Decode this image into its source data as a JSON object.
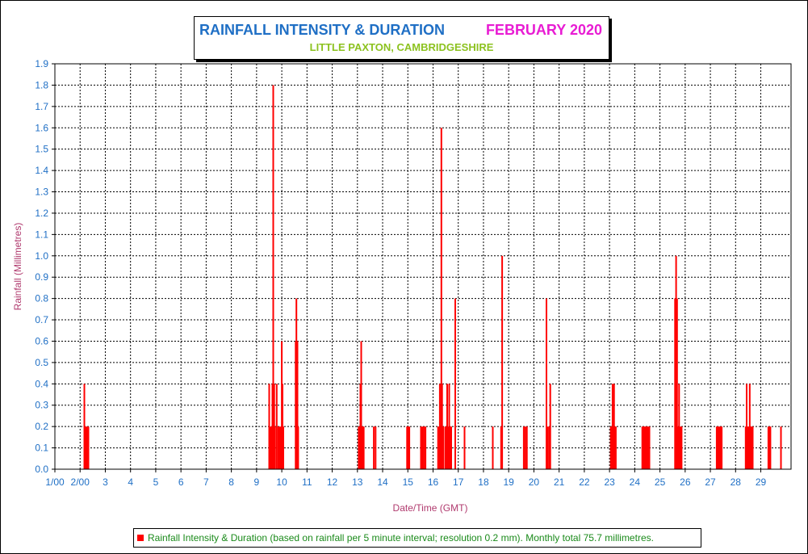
{
  "chart_data": {
    "type": "bar",
    "title": "RAINFALL INTENSITY & DURATION",
    "title_month": "FEBRUARY 2020",
    "subtitle": "LITTLE PAXTON, CAMBRIDGESHIRE",
    "xlabel": "Date/Time (GMT)",
    "ylabel": "Rainfall (Millimetres)",
    "ylim": [
      0,
      1.9
    ],
    "xlim": [
      1,
      30.2
    ],
    "grid": true,
    "legend_position": "bottom",
    "y_ticks": [
      "0.0",
      "0.1",
      "0.2",
      "0.3",
      "0.4",
      "0.5",
      "0.6",
      "0.7",
      "0.8",
      "0.9",
      "1.0",
      "1.1",
      "1.2",
      "1.3",
      "1.4",
      "1.5",
      "1.6",
      "1.7",
      "1.8",
      "1.9"
    ],
    "x_ticks": [
      {
        "x": 1,
        "label": "1/00"
      },
      {
        "x": 2,
        "label": "2/00"
      },
      {
        "x": 3,
        "label": "3"
      },
      {
        "x": 4,
        "label": "4"
      },
      {
        "x": 5,
        "label": "5"
      },
      {
        "x": 6,
        "label": "6"
      },
      {
        "x": 7,
        "label": "7"
      },
      {
        "x": 8,
        "label": "8"
      },
      {
        "x": 9,
        "label": "9"
      },
      {
        "x": 10,
        "label": "10"
      },
      {
        "x": 11,
        "label": "11"
      },
      {
        "x": 12,
        "label": "12"
      },
      {
        "x": 13,
        "label": "13"
      },
      {
        "x": 14,
        "label": "14"
      },
      {
        "x": 15,
        "label": "15"
      },
      {
        "x": 16,
        "label": "16"
      },
      {
        "x": 17,
        "label": "17"
      },
      {
        "x": 18,
        "label": "18"
      },
      {
        "x": 19,
        "label": "19"
      },
      {
        "x": 20,
        "label": "20"
      },
      {
        "x": 21,
        "label": "21"
      },
      {
        "x": 22,
        "label": "22"
      },
      {
        "x": 23,
        "label": "23"
      },
      {
        "x": 24,
        "label": "24"
      },
      {
        "x": 25,
        "label": "25"
      },
      {
        "x": 26,
        "label": "26"
      },
      {
        "x": 27,
        "label": "27"
      },
      {
        "x": 28,
        "label": "28"
      },
      {
        "x": 29,
        "label": "29"
      }
    ],
    "series": [
      {
        "name": "Rainfall Intensity & Duration (based on rainfall per 5 minute interval; resolution 0.2 mm). Monthly total 75.7 millimetres.",
        "color": "#ff0000",
        "points": [
          [
            2.17,
            0.4
          ],
          [
            2.2,
            0.2
          ],
          [
            2.24,
            0.2
          ],
          [
            2.28,
            0.2
          ],
          [
            2.33,
            0.2
          ],
          [
            9.5,
            0.4
          ],
          [
            9.53,
            0.2
          ],
          [
            9.57,
            0.2
          ],
          [
            9.6,
            0.2
          ],
          [
            9.63,
            0.4
          ],
          [
            9.66,
            1.8
          ],
          [
            9.7,
            0.4
          ],
          [
            9.73,
            0.2
          ],
          [
            9.8,
            0.4
          ],
          [
            9.86,
            0.2
          ],
          [
            9.9,
            0.2
          ],
          [
            9.96,
            0.2
          ],
          [
            10.0,
            0.6
          ],
          [
            10.03,
            0.4
          ],
          [
            10.06,
            0.2
          ],
          [
            10.55,
            0.6
          ],
          [
            10.58,
            0.8
          ],
          [
            10.62,
            0.6
          ],
          [
            10.65,
            0.2
          ],
          [
            13.05,
            0.2
          ],
          [
            13.08,
            0.2
          ],
          [
            13.12,
            0.4
          ],
          [
            13.15,
            0.6
          ],
          [
            13.18,
            0.2
          ],
          [
            13.22,
            0.2
          ],
          [
            13.25,
            0.2
          ],
          [
            13.65,
            0.2
          ],
          [
            13.72,
            0.2
          ],
          [
            14.97,
            0.2
          ],
          [
            15.0,
            0.2
          ],
          [
            15.03,
            0.2
          ],
          [
            15.06,
            0.2
          ],
          [
            15.52,
            0.2
          ],
          [
            15.58,
            0.2
          ],
          [
            15.64,
            0.2
          ],
          [
            15.7,
            0.2
          ],
          [
            16.2,
            0.2
          ],
          [
            16.24,
            0.2
          ],
          [
            16.27,
            0.4
          ],
          [
            16.3,
            0.2
          ],
          [
            16.33,
            1.6
          ],
          [
            16.36,
            0.4
          ],
          [
            16.4,
            0.2
          ],
          [
            16.48,
            0.2
          ],
          [
            16.52,
            0.2
          ],
          [
            16.56,
            0.4
          ],
          [
            16.6,
            0.2
          ],
          [
            16.64,
            0.4
          ],
          [
            16.68,
            0.2
          ],
          [
            16.72,
            0.2
          ],
          [
            16.88,
            0.8
          ],
          [
            17.25,
            0.2
          ],
          [
            18.37,
            0.2
          ],
          [
            18.7,
            0.2
          ],
          [
            18.74,
            1.0
          ],
          [
            19.6,
            0.2
          ],
          [
            19.66,
            0.2
          ],
          [
            19.72,
            0.2
          ],
          [
            20.5,
            0.8
          ],
          [
            20.54,
            0.2
          ],
          [
            20.6,
            0.2
          ],
          [
            20.65,
            0.4
          ],
          [
            23.05,
            0.2
          ],
          [
            23.08,
            0.2
          ],
          [
            23.12,
            0.4
          ],
          [
            23.15,
            0.2
          ],
          [
            23.18,
            0.4
          ],
          [
            23.22,
            0.2
          ],
          [
            23.25,
            0.2
          ],
          [
            24.3,
            0.2
          ],
          [
            24.34,
            0.2
          ],
          [
            24.38,
            0.2
          ],
          [
            24.42,
            0.2
          ],
          [
            24.46,
            0.2
          ],
          [
            24.5,
            0.2
          ],
          [
            24.54,
            0.2
          ],
          [
            24.58,
            0.2
          ],
          [
            25.6,
            0.8
          ],
          [
            25.64,
            1.0
          ],
          [
            25.68,
            0.8
          ],
          [
            25.72,
            0.2
          ],
          [
            25.76,
            0.4
          ],
          [
            25.8,
            0.2
          ],
          [
            25.86,
            0.2
          ],
          [
            27.25,
            0.2
          ],
          [
            27.29,
            0.2
          ],
          [
            27.33,
            0.2
          ],
          [
            27.37,
            0.2
          ],
          [
            27.41,
            0.2
          ],
          [
            27.45,
            0.2
          ],
          [
            28.4,
            0.2
          ],
          [
            28.44,
            0.4
          ],
          [
            28.48,
            0.2
          ],
          [
            28.52,
            0.2
          ],
          [
            28.56,
            0.4
          ],
          [
            28.6,
            0.2
          ],
          [
            28.64,
            0.2
          ],
          [
            28.68,
            0.2
          ],
          [
            29.3,
            0.2
          ],
          [
            29.34,
            0.2
          ],
          [
            29.38,
            0.2
          ],
          [
            29.8,
            0.2
          ]
        ]
      }
    ]
  },
  "colors": {
    "title": "#1f6fc5",
    "month": "#e81cd3",
    "subtitle": "#8cc21f",
    "axis_labels": "#b03a6e",
    "tick_labels": "#1f6fc5",
    "legend_text": "#1a8a1a",
    "bars": "#ff0000"
  }
}
